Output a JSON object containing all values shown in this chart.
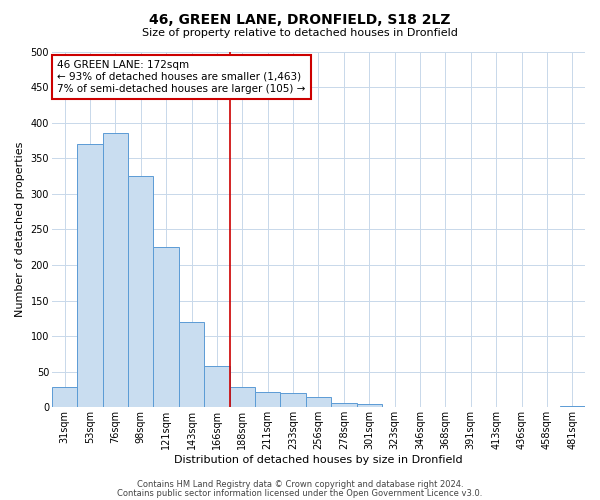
{
  "title": "46, GREEN LANE, DRONFIELD, S18 2LZ",
  "subtitle": "Size of property relative to detached houses in Dronfield",
  "xlabel": "Distribution of detached houses by size in Dronfield",
  "ylabel": "Number of detached properties",
  "bin_labels": [
    "31sqm",
    "53sqm",
    "76sqm",
    "98sqm",
    "121sqm",
    "143sqm",
    "166sqm",
    "188sqm",
    "211sqm",
    "233sqm",
    "256sqm",
    "278sqm",
    "301sqm",
    "323sqm",
    "346sqm",
    "368sqm",
    "391sqm",
    "413sqm",
    "436sqm",
    "458sqm",
    "481sqm"
  ],
  "bar_heights": [
    28,
    370,
    385,
    325,
    225,
    120,
    58,
    28,
    22,
    20,
    15,
    6,
    5,
    1,
    1,
    0,
    0,
    0,
    0,
    0,
    2
  ],
  "bar_color": "#c9ddf0",
  "bar_edgecolor": "#5b9bd5",
  "ylim": [
    0,
    500
  ],
  "yticks": [
    0,
    50,
    100,
    150,
    200,
    250,
    300,
    350,
    400,
    450,
    500
  ],
  "vline_x": 6.5,
  "vline_color": "#cc0000",
  "annotation_title": "46 GREEN LANE: 172sqm",
  "annotation_line1": "← 93% of detached houses are smaller (1,463)",
  "annotation_line2": "7% of semi-detached houses are larger (105) →",
  "annotation_box_color": "#cc0000",
  "footer_line1": "Contains HM Land Registry data © Crown copyright and database right 2024.",
  "footer_line2": "Contains public sector information licensed under the Open Government Licence v3.0.",
  "background_color": "#ffffff",
  "grid_color": "#c8d8ea",
  "title_fontsize": 10,
  "subtitle_fontsize": 8,
  "ylabel_fontsize": 8,
  "xlabel_fontsize": 8,
  "tick_fontsize": 7,
  "annotation_fontsize": 7.5,
  "footer_fontsize": 6
}
